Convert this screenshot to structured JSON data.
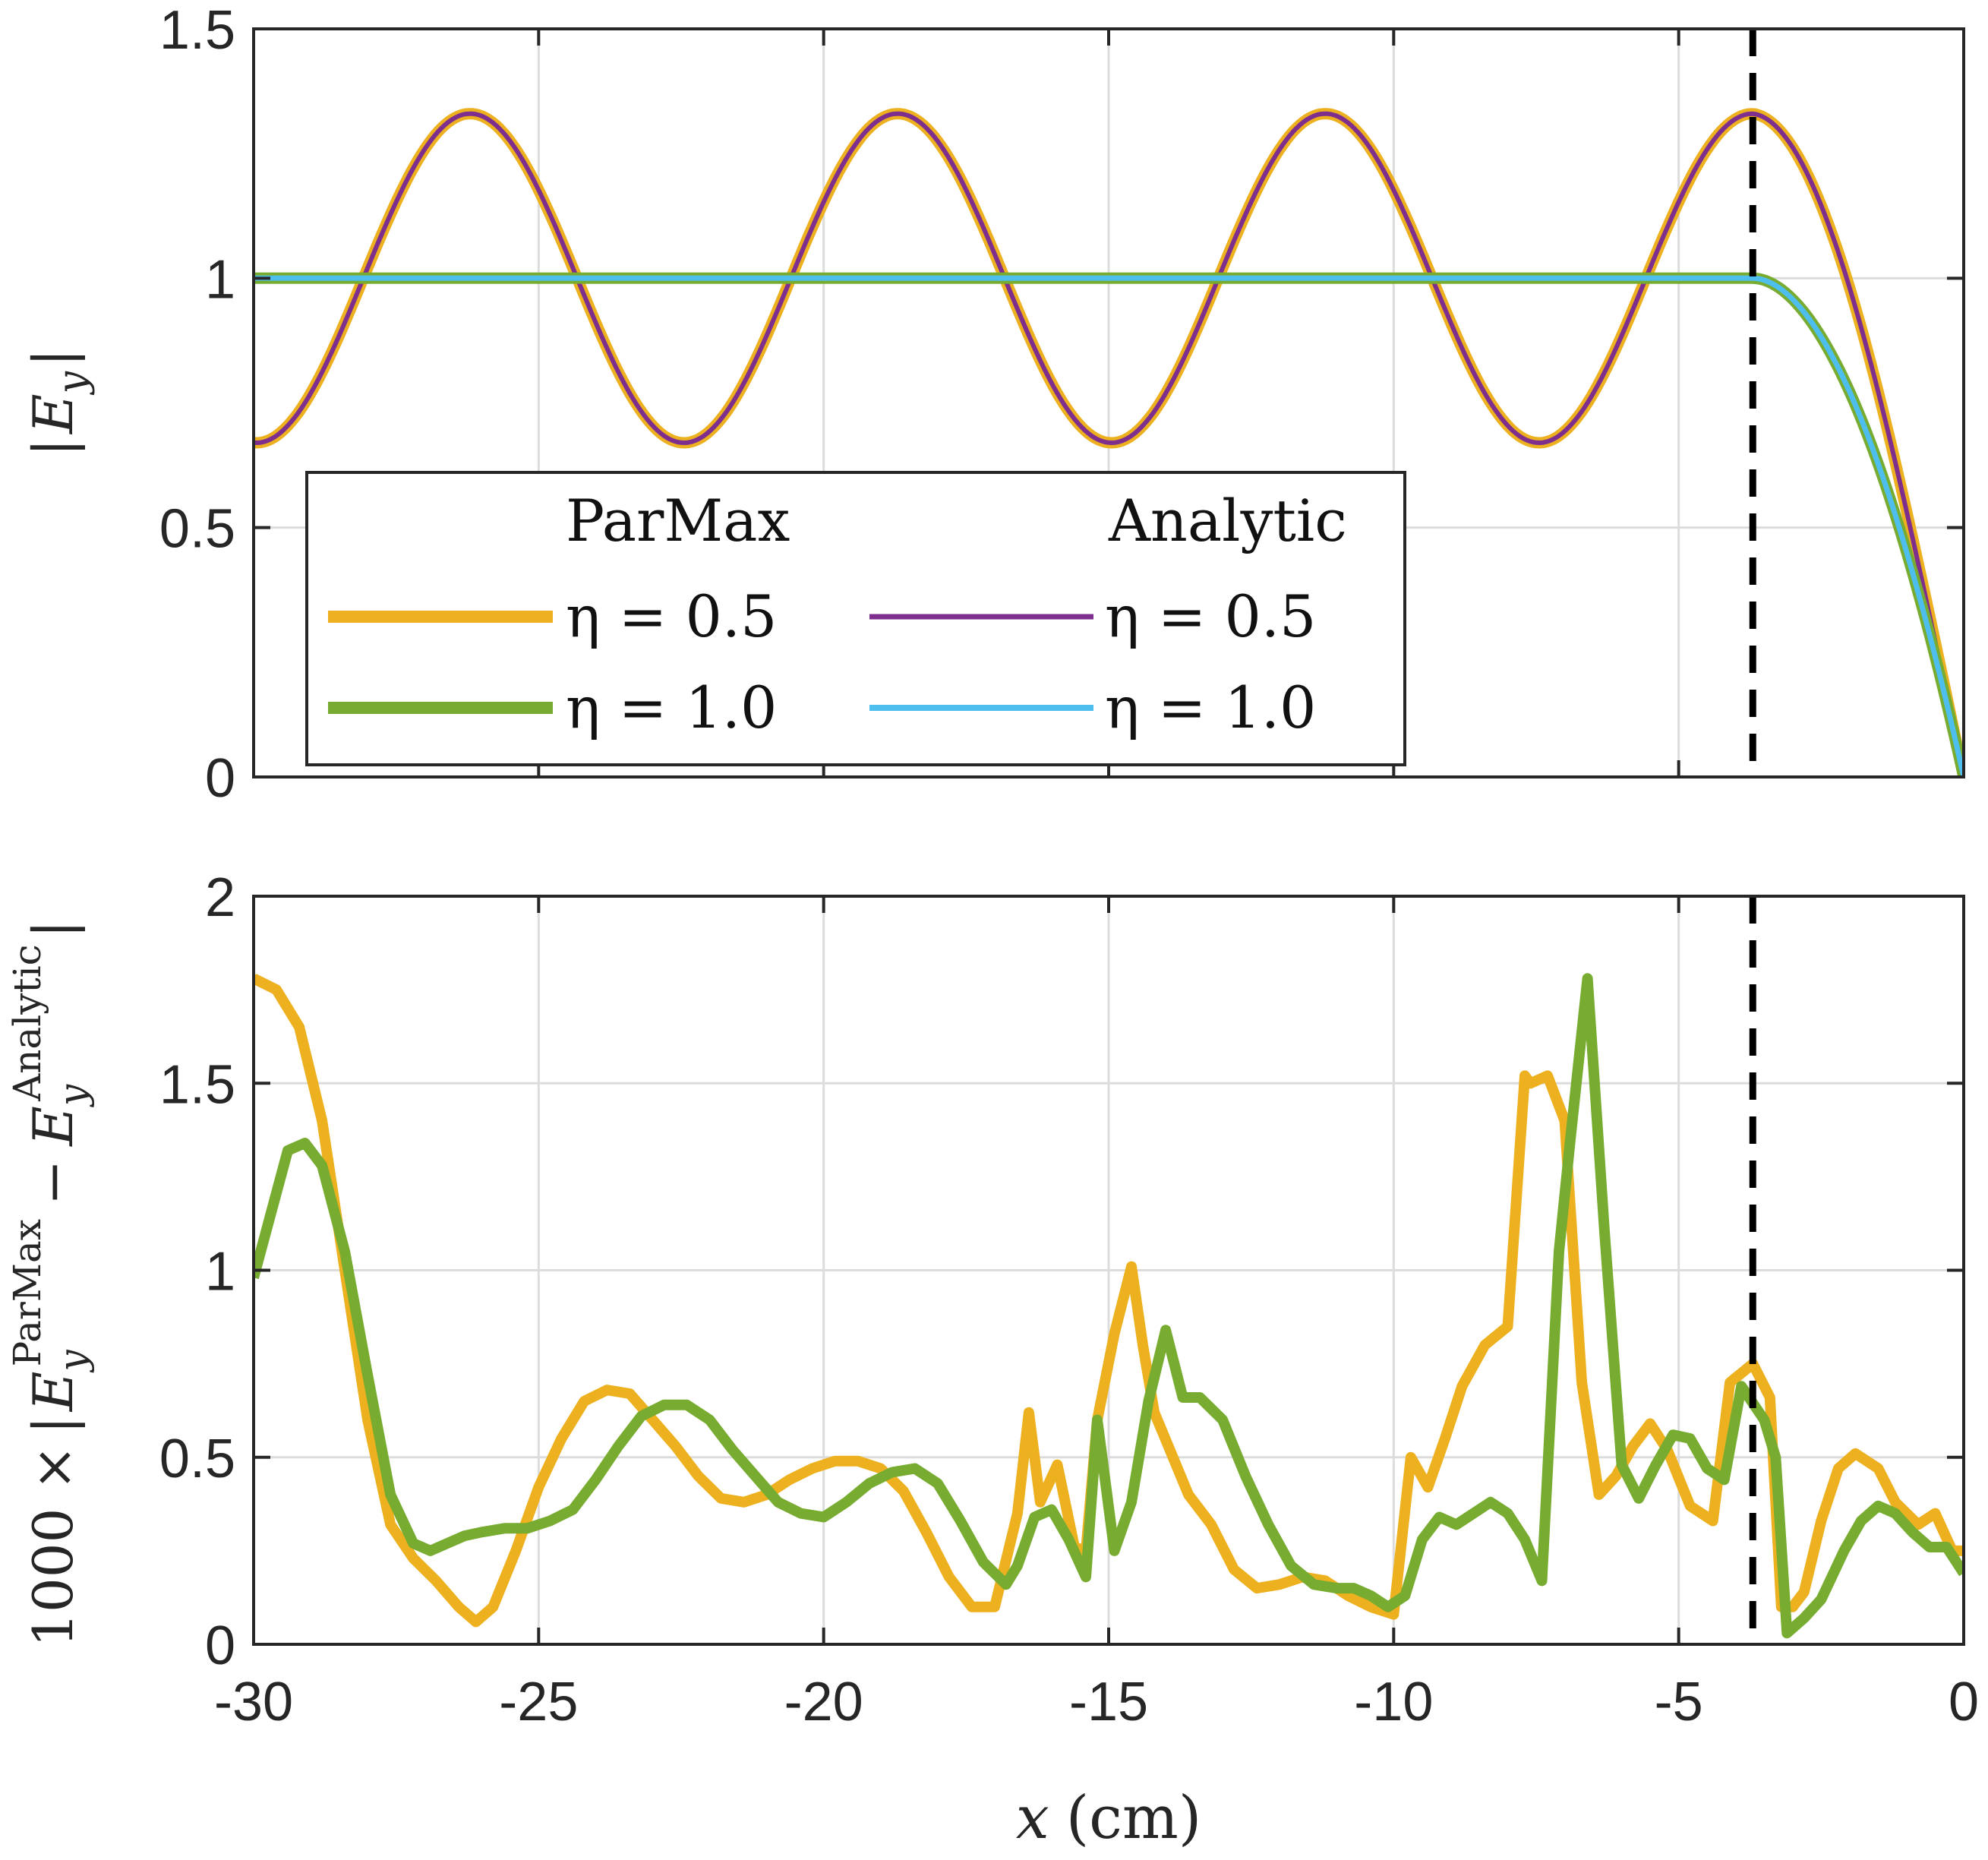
{
  "colors": {
    "parmax_eta05": "#EDB120",
    "parmax_eta10": "#77AC30",
    "analytic_eta05": "#7E2F8E",
    "analytic_eta10": "#4DBEEE",
    "grid": "#DCDCDC",
    "axes": "#262626"
  },
  "chart_data": [
    {
      "type": "line",
      "id": "top",
      "ylabel": "|E_y|",
      "ylabel_parts": {
        "bar_left": "|",
        "sym": "E",
        "sub": "y",
        "bar_right": "|"
      },
      "xlim": [
        -30,
        0
      ],
      "ylim": [
        0,
        1.5
      ],
      "xticks": [
        -30,
        -25,
        -20,
        -15,
        -10,
        -5,
        0
      ],
      "yticks": [
        0,
        0.5,
        1,
        1.5
      ],
      "ytick_labels": [
        "0",
        "0.5",
        "1",
        "1.5"
      ],
      "grid": true,
      "legend_placement": "lower-left",
      "legend": {
        "col1_header": "ParMax",
        "col2_header": "Analytic",
        "entries": [
          {
            "label": "η = 0.5",
            "series": "parmax_eta05"
          },
          {
            "label": "η = 1.0",
            "series": "parmax_eta10"
          },
          {
            "label": "η = 0.5",
            "series": "analytic_eta05"
          },
          {
            "label": "η = 1.0",
            "series": "analytic_eta10"
          }
        ]
      },
      "vline_x": -3.7,
      "series_models": {
        "standing_wave": {
          "amplitude_max": 1.33,
          "amplitude_min": 0.67,
          "period_cm": 7.5,
          "peak_x": -26.2
        },
        "flat_level": 1.0,
        "decay_start_x": -3.7,
        "end_value_x0": 0.0
      },
      "series": [
        {
          "key": "parmax_eta05",
          "legend_label": "η = 0.5",
          "width": 15,
          "model": "standing"
        },
        {
          "key": "analytic_eta05",
          "legend_label": "η = 0.5",
          "width": 6,
          "model": "standing"
        },
        {
          "key": "parmax_eta10",
          "legend_label": "η = 1.0",
          "width": 15,
          "model": "flat"
        },
        {
          "key": "analytic_eta10",
          "legend_label": "η = 1.0",
          "width": 7,
          "model": "flat"
        }
      ]
    },
    {
      "type": "line",
      "id": "bottom",
      "ylabel_prefix": "1000 ×",
      "ylabel_parts": {
        "sym": "E",
        "sub": "y",
        "sup1": "ParMax",
        "sup2": "Analytic"
      },
      "xlabel": "x (cm)",
      "xlabel_parts": {
        "var": "x",
        "unit": "(cm)"
      },
      "xlim": [
        -30,
        0
      ],
      "ylim": [
        0,
        2
      ],
      "xticks": [
        -30,
        -25,
        -20,
        -15,
        -10,
        -5,
        0
      ],
      "xtick_labels": [
        "-30",
        "-25",
        "-20",
        "-15",
        "-10",
        "-5",
        "0"
      ],
      "yticks": [
        0,
        0.5,
        1,
        1.5,
        2
      ],
      "ytick_labels": [
        "0",
        "0.5",
        "1",
        "1.5",
        "2"
      ],
      "grid": true,
      "vline_x": -3.7,
      "series": [
        {
          "key": "parmax_eta05",
          "legend_label": "η = 0.5",
          "width": 14,
          "x": [
            -30,
            -29.6,
            -29.2,
            -28.8,
            -28.4,
            -28,
            -27.6,
            -27.2,
            -26.8,
            -26.4,
            -26.1,
            -25.8,
            -25.4,
            -25,
            -24.6,
            -24.2,
            -23.8,
            -23.4,
            -23,
            -22.6,
            -22.2,
            -21.8,
            -21.4,
            -21,
            -20.6,
            -20.2,
            -19.8,
            -19.4,
            -19,
            -18.6,
            -18.2,
            -17.8,
            -17.4,
            -17,
            -16.6,
            -16.4,
            -16.2,
            -15.9,
            -15.6,
            -15.4,
            -15.2,
            -14.9,
            -14.6,
            -14.4,
            -14.2,
            -13.9,
            -13.6,
            -13.2,
            -12.8,
            -12.4,
            -12,
            -11.6,
            -11.2,
            -10.8,
            -10.4,
            -10,
            -9.7,
            -9.4,
            -9.1,
            -8.8,
            -8.4,
            -8,
            -7.7,
            -7.6,
            -7.3,
            -7,
            -6.7,
            -6.4,
            -6.1,
            -5.8,
            -5.5,
            -5.2,
            -4.8,
            -4.4,
            -4.1,
            -3.7,
            -3.4,
            -3.2,
            -3,
            -2.8,
            -2.5,
            -2.2,
            -1.9,
            -1.5,
            -1.2,
            -0.8,
            -0.5,
            -0.2,
            0
          ],
          "y": [
            1.78,
            1.75,
            1.65,
            1.4,
            1.0,
            0.6,
            0.32,
            0.23,
            0.17,
            0.1,
            0.06,
            0.1,
            0.25,
            0.42,
            0.55,
            0.65,
            0.68,
            0.67,
            0.6,
            0.53,
            0.45,
            0.39,
            0.38,
            0.4,
            0.44,
            0.47,
            0.49,
            0.49,
            0.47,
            0.41,
            0.3,
            0.18,
            0.1,
            0.1,
            0.35,
            0.62,
            0.38,
            0.48,
            0.26,
            0.25,
            0.6,
            0.83,
            1.01,
            0.8,
            0.62,
            0.51,
            0.4,
            0.32,
            0.2,
            0.15,
            0.16,
            0.18,
            0.17,
            0.13,
            0.1,
            0.08,
            0.5,
            0.42,
            0.55,
            0.69,
            0.8,
            0.85,
            1.52,
            1.5,
            1.52,
            1.4,
            0.7,
            0.4,
            0.45,
            0.53,
            0.59,
            0.52,
            0.37,
            0.33,
            0.7,
            0.75,
            0.66,
            0.1,
            0.1,
            0.14,
            0.33,
            0.47,
            0.51,
            0.47,
            0.38,
            0.32,
            0.35,
            0.25,
            0.25
          ]
        },
        {
          "key": "parmax_eta10",
          "legend_label": "η = 1.0",
          "width": 14,
          "x": [
            -30,
            -29.7,
            -29.4,
            -29.1,
            -28.8,
            -28.4,
            -28,
            -27.6,
            -27.2,
            -26.9,
            -26.6,
            -26.3,
            -26,
            -25.6,
            -25.2,
            -24.8,
            -24.4,
            -24,
            -23.6,
            -23.2,
            -22.8,
            -22.4,
            -22,
            -21.6,
            -21.2,
            -20.8,
            -20.4,
            -20,
            -19.6,
            -19.2,
            -18.8,
            -18.4,
            -18,
            -17.6,
            -17.2,
            -16.8,
            -16.6,
            -16.3,
            -16,
            -15.7,
            -15.4,
            -15.2,
            -14.9,
            -14.6,
            -14.3,
            -14,
            -13.7,
            -13.4,
            -13,
            -12.6,
            -12.2,
            -11.8,
            -11.4,
            -11,
            -10.7,
            -10.4,
            -10.1,
            -9.8,
            -9.5,
            -9.2,
            -8.9,
            -8.6,
            -8.3,
            -8,
            -7.7,
            -7.4,
            -7.1,
            -6.9,
            -6.6,
            -6.3,
            -6,
            -5.7,
            -5.4,
            -5.1,
            -4.8,
            -4.5,
            -4.2,
            -3.9,
            -3.5,
            -3.3,
            -3.1,
            -2.8,
            -2.5,
            -2.1,
            -1.8,
            -1.5,
            -1.2,
            -0.9,
            -0.6,
            -0.3,
            0
          ],
          "y": [
            0.98,
            1.15,
            1.32,
            1.34,
            1.28,
            1.05,
            0.72,
            0.4,
            0.27,
            0.25,
            0.27,
            0.29,
            0.3,
            0.31,
            0.31,
            0.33,
            0.36,
            0.44,
            0.53,
            0.61,
            0.64,
            0.64,
            0.6,
            0.52,
            0.45,
            0.38,
            0.35,
            0.34,
            0.38,
            0.43,
            0.46,
            0.47,
            0.43,
            0.33,
            0.22,
            0.16,
            0.21,
            0.34,
            0.36,
            0.28,
            0.18,
            0.6,
            0.25,
            0.38,
            0.65,
            0.84,
            0.66,
            0.66,
            0.6,
            0.45,
            0.32,
            0.21,
            0.16,
            0.15,
            0.15,
            0.13,
            0.1,
            0.13,
            0.28,
            0.34,
            0.32,
            0.35,
            0.38,
            0.35,
            0.28,
            0.17,
            1.05,
            1.35,
            1.78,
            1.1,
            0.48,
            0.39,
            0.48,
            0.56,
            0.55,
            0.47,
            0.44,
            0.69,
            0.6,
            0.5,
            0.03,
            0.07,
            0.12,
            0.25,
            0.33,
            0.37,
            0.35,
            0.3,
            0.26,
            0.26,
            0.19
          ]
        }
      ]
    }
  ]
}
